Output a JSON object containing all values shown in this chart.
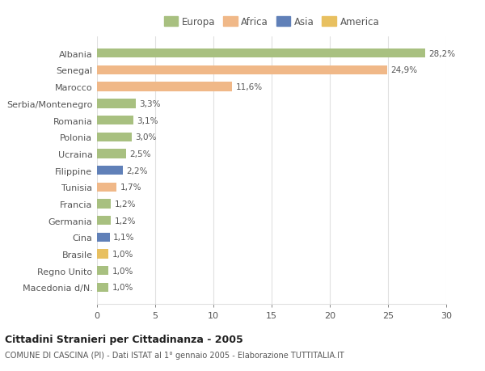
{
  "categories": [
    "Macedonia d/N.",
    "Regno Unito",
    "Brasile",
    "Cina",
    "Germania",
    "Francia",
    "Tunisia",
    "Filippine",
    "Ucraina",
    "Polonia",
    "Romania",
    "Serbia/Montenegro",
    "Marocco",
    "Senegal",
    "Albania"
  ],
  "values": [
    1.0,
    1.0,
    1.0,
    1.1,
    1.2,
    1.2,
    1.7,
    2.2,
    2.5,
    3.0,
    3.1,
    3.3,
    11.6,
    24.9,
    28.2
  ],
  "labels": [
    "1,0%",
    "1,0%",
    "1,0%",
    "1,1%",
    "1,2%",
    "1,2%",
    "1,7%",
    "2,2%",
    "2,5%",
    "3,0%",
    "3,1%",
    "3,3%",
    "11,6%",
    "24,9%",
    "28,2%"
  ],
  "colors": [
    "#a8c080",
    "#a8c080",
    "#e8c060",
    "#6080b8",
    "#a8c080",
    "#a8c080",
    "#f0b888",
    "#6080b8",
    "#a8c080",
    "#a8c080",
    "#a8c080",
    "#a8c080",
    "#f0b888",
    "#f0b888",
    "#a8c080"
  ],
  "legend_labels": [
    "Europa",
    "Africa",
    "Asia",
    "America"
  ],
  "legend_colors": [
    "#a8c080",
    "#f0b888",
    "#6080b8",
    "#e8c060"
  ],
  "title": "Cittadini Stranieri per Cittadinanza - 2005",
  "subtitle": "COMUNE DI CASCINA (PI) - Dati ISTAT al 1° gennaio 2005 - Elaborazione TUTTITALIA.IT",
  "xlim": [
    0,
    30
  ],
  "xticks": [
    0,
    5,
    10,
    15,
    20,
    25,
    30
  ],
  "background_color": "#ffffff",
  "plot_background": "#ffffff",
  "grid_color": "#e0e0e0",
  "bar_height": 0.55
}
